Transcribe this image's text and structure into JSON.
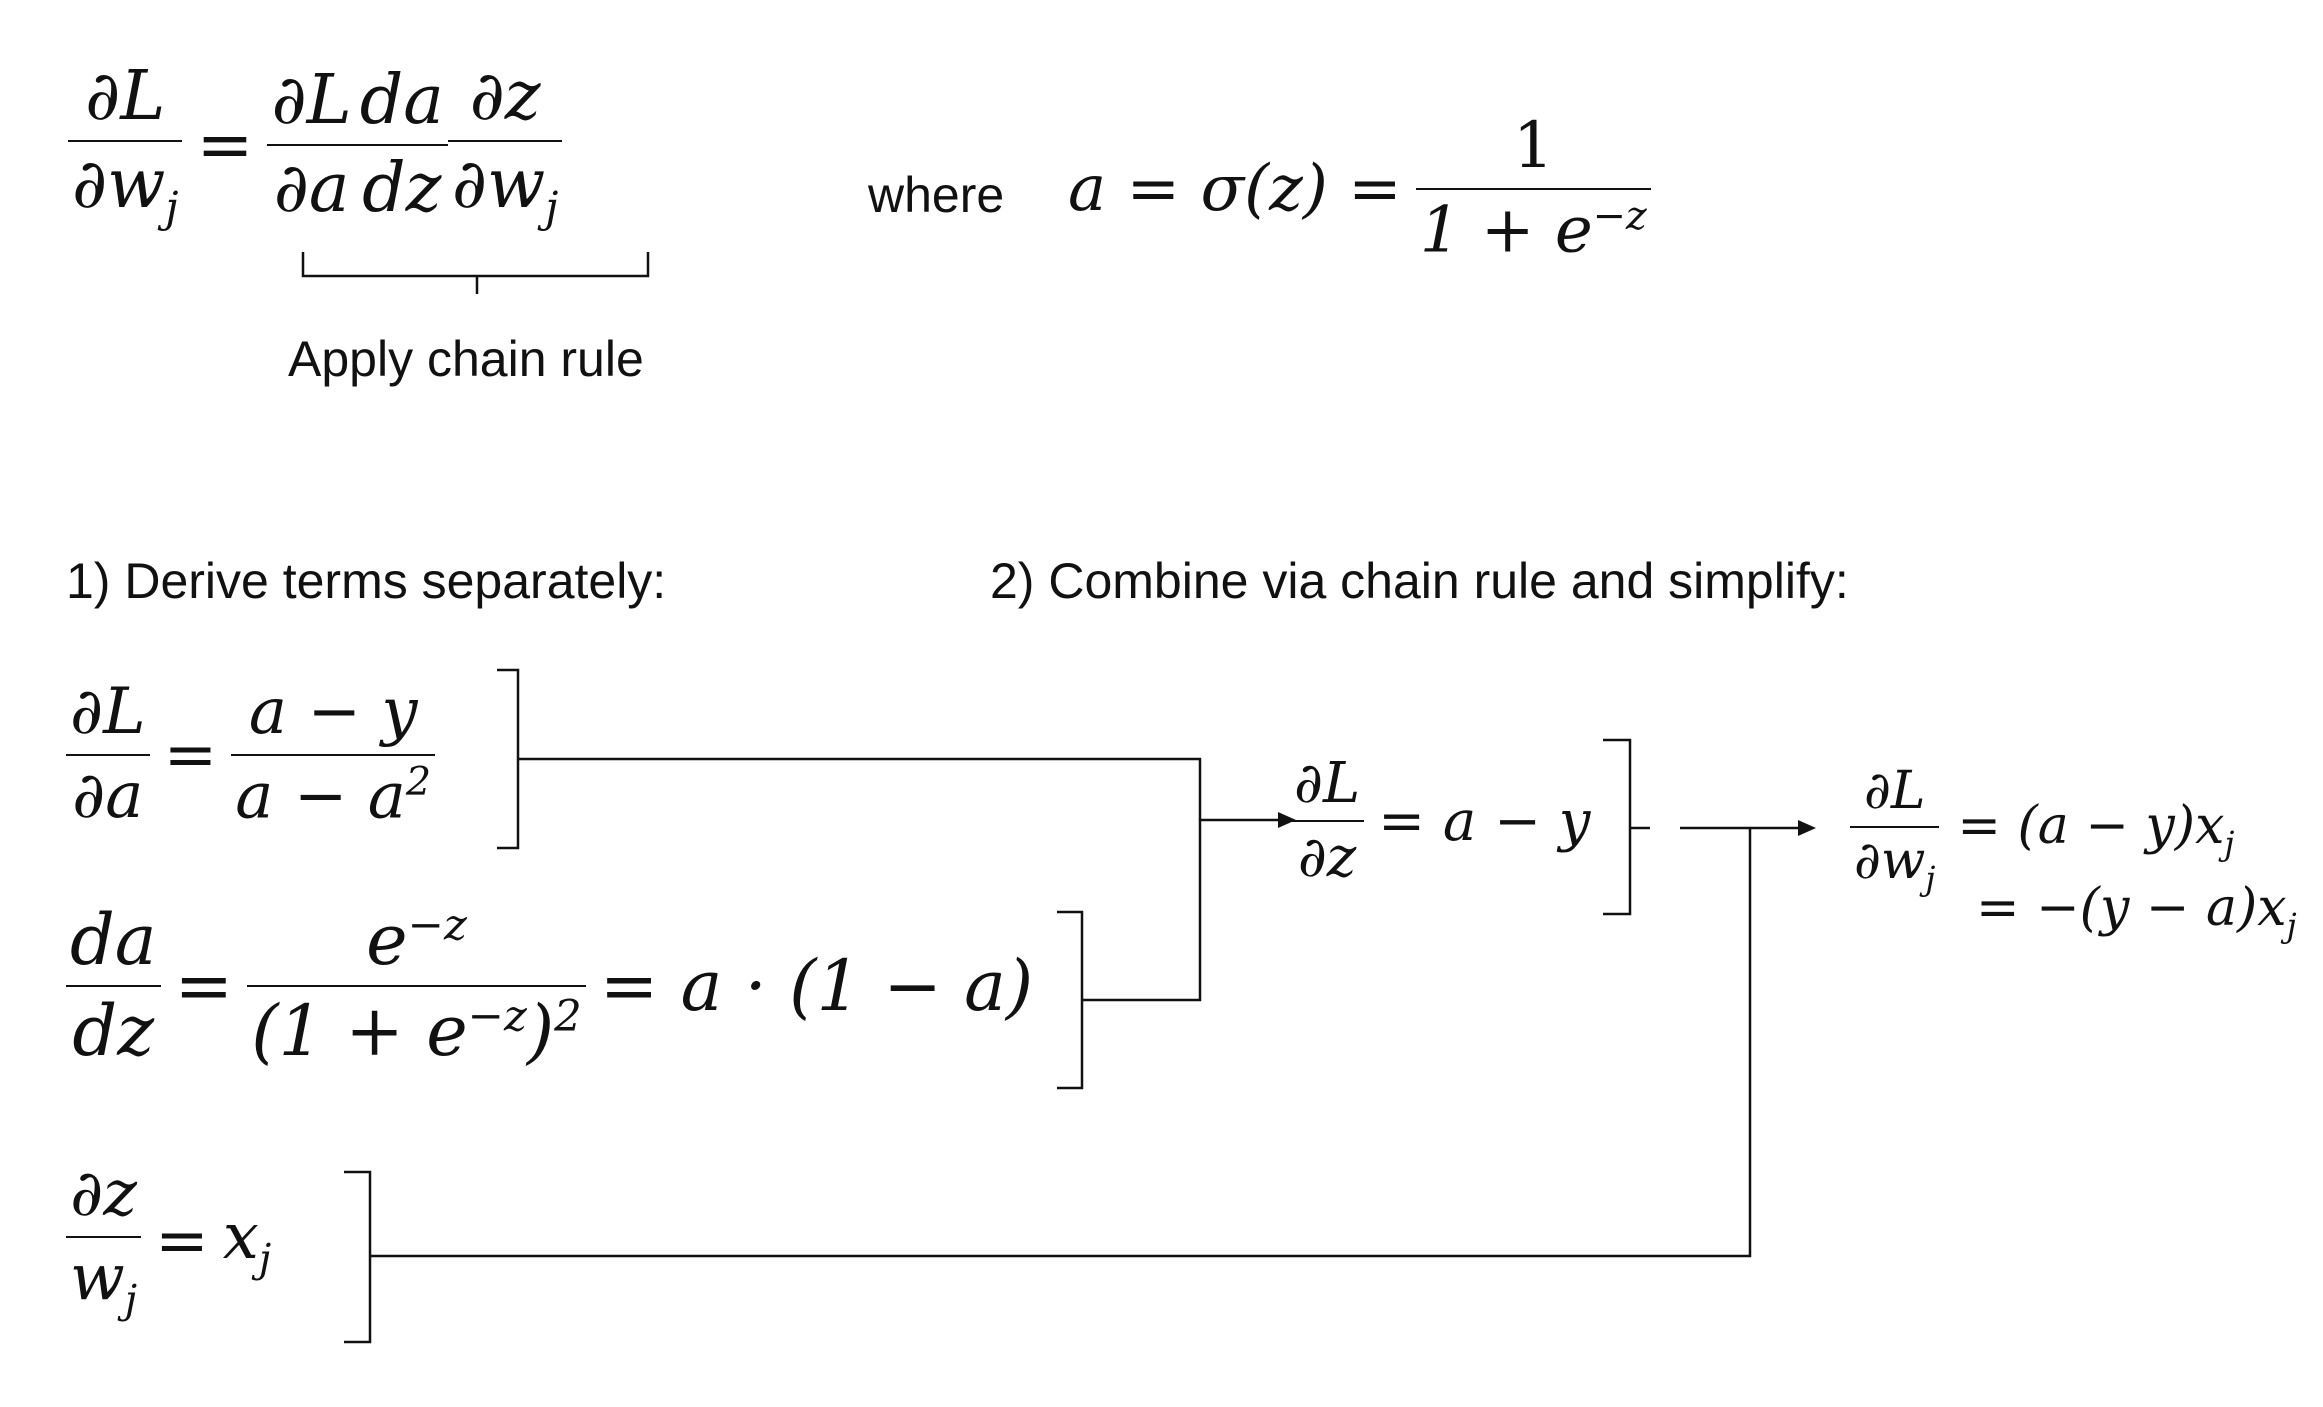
{
  "top": {
    "lhs": {
      "num": "∂L",
      "den": "∂w",
      "den_sub": "j"
    },
    "eq": "=",
    "chain": [
      {
        "num": "∂L",
        "den": "∂a",
        "den_sub": ""
      },
      {
        "num": "da",
        "den": "dz",
        "den_sub": ""
      },
      {
        "num": "∂z",
        "den": "∂w",
        "den_sub": "j"
      }
    ],
    "brace_label": "Apply chain rule",
    "where": "where",
    "sigma_lhs": "a = σ(z) =",
    "sigma_num": "1",
    "sigma_den": "1 + e",
    "sigma_den_sup": "−z"
  },
  "step1_heading": "1) Derive terms separately:",
  "step2_heading": "2) Combine via chain rule and simplify:",
  "terms": {
    "dL_da": {
      "num": "∂L",
      "den": "∂a",
      "eq": "=",
      "rhs_num": "a − y",
      "rhs_den": "a − a",
      "rhs_den_sup": "2"
    },
    "da_dz": {
      "num": "da",
      "den": "dz",
      "eq": "=",
      "rhs_num": "e",
      "rhs_num_sup": "−z",
      "rhs_den": "(1 + e",
      "rhs_den_sup": "−z",
      "rhs_den_tail": ")",
      "rhs_den_tail_sup": "2",
      "tail": "= a · (1 − a)"
    },
    "dz_dw": {
      "num": "∂z",
      "den": "w",
      "den_sub": "j",
      "eq": "=",
      "rhs": "x",
      "rhs_sub": "j"
    }
  },
  "combined": {
    "num": "∂L",
    "den": "∂z",
    "rhs": "= a − y"
  },
  "final": {
    "num": "∂L",
    "den": "∂w",
    "den_sub": "j",
    "line1": "= (a − y)x",
    "line1_sub": "j",
    "line2": "= −(y − a)x",
    "line2_sub": "j"
  }
}
